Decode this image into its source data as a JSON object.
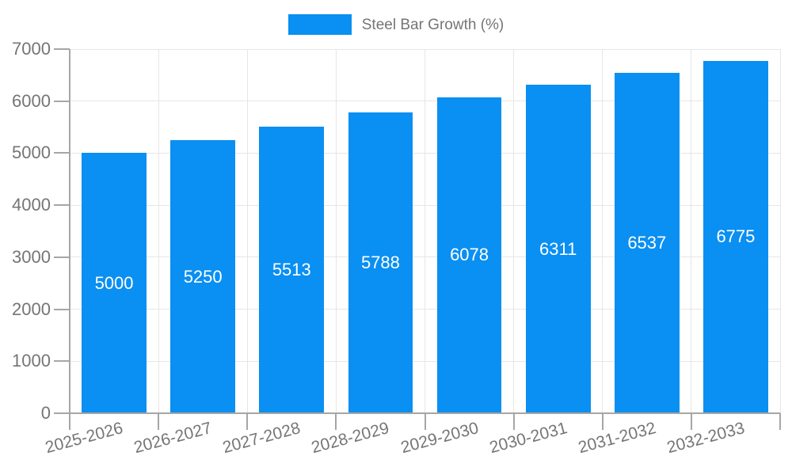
{
  "legend": {
    "label": "Steel Bar Growth (%)"
  },
  "colors": {
    "bar": "#0A8FF2",
    "grid": "#E6E6E6",
    "axis": "#A6A6A6",
    "tick_label": "#757575",
    "value_label": "#FFFFFF",
    "legend_text": "#757575"
  },
  "chart_data": {
    "type": "bar",
    "title": "Steel Bar Growth (%)",
    "categories": [
      "2025-2026",
      "2026-2027",
      "2027-2028",
      "2028-2029",
      "2029-2030",
      "2030-2031",
      "2031-2032",
      "2032-2033"
    ],
    "values": [
      5000,
      5250,
      5513,
      5788,
      6078,
      6311,
      6537,
      6775
    ],
    "bar_value_labels": [
      "5000",
      "5250",
      "5513",
      "5788",
      "6078",
      "6311",
      "6537",
      "6775"
    ],
    "yticks": [
      0,
      1000,
      2000,
      3000,
      4000,
      5000,
      6000,
      7000
    ],
    "ytick_labels": [
      "0",
      "1000",
      "2000",
      "3000",
      "4000",
      "5000",
      "6000",
      "7000"
    ],
    "ylim": [
      0,
      7000
    ],
    "xlabel": "",
    "ylabel": "",
    "legend_position": "top-center",
    "grid": true,
    "x_label_rotation_deg": -15
  }
}
